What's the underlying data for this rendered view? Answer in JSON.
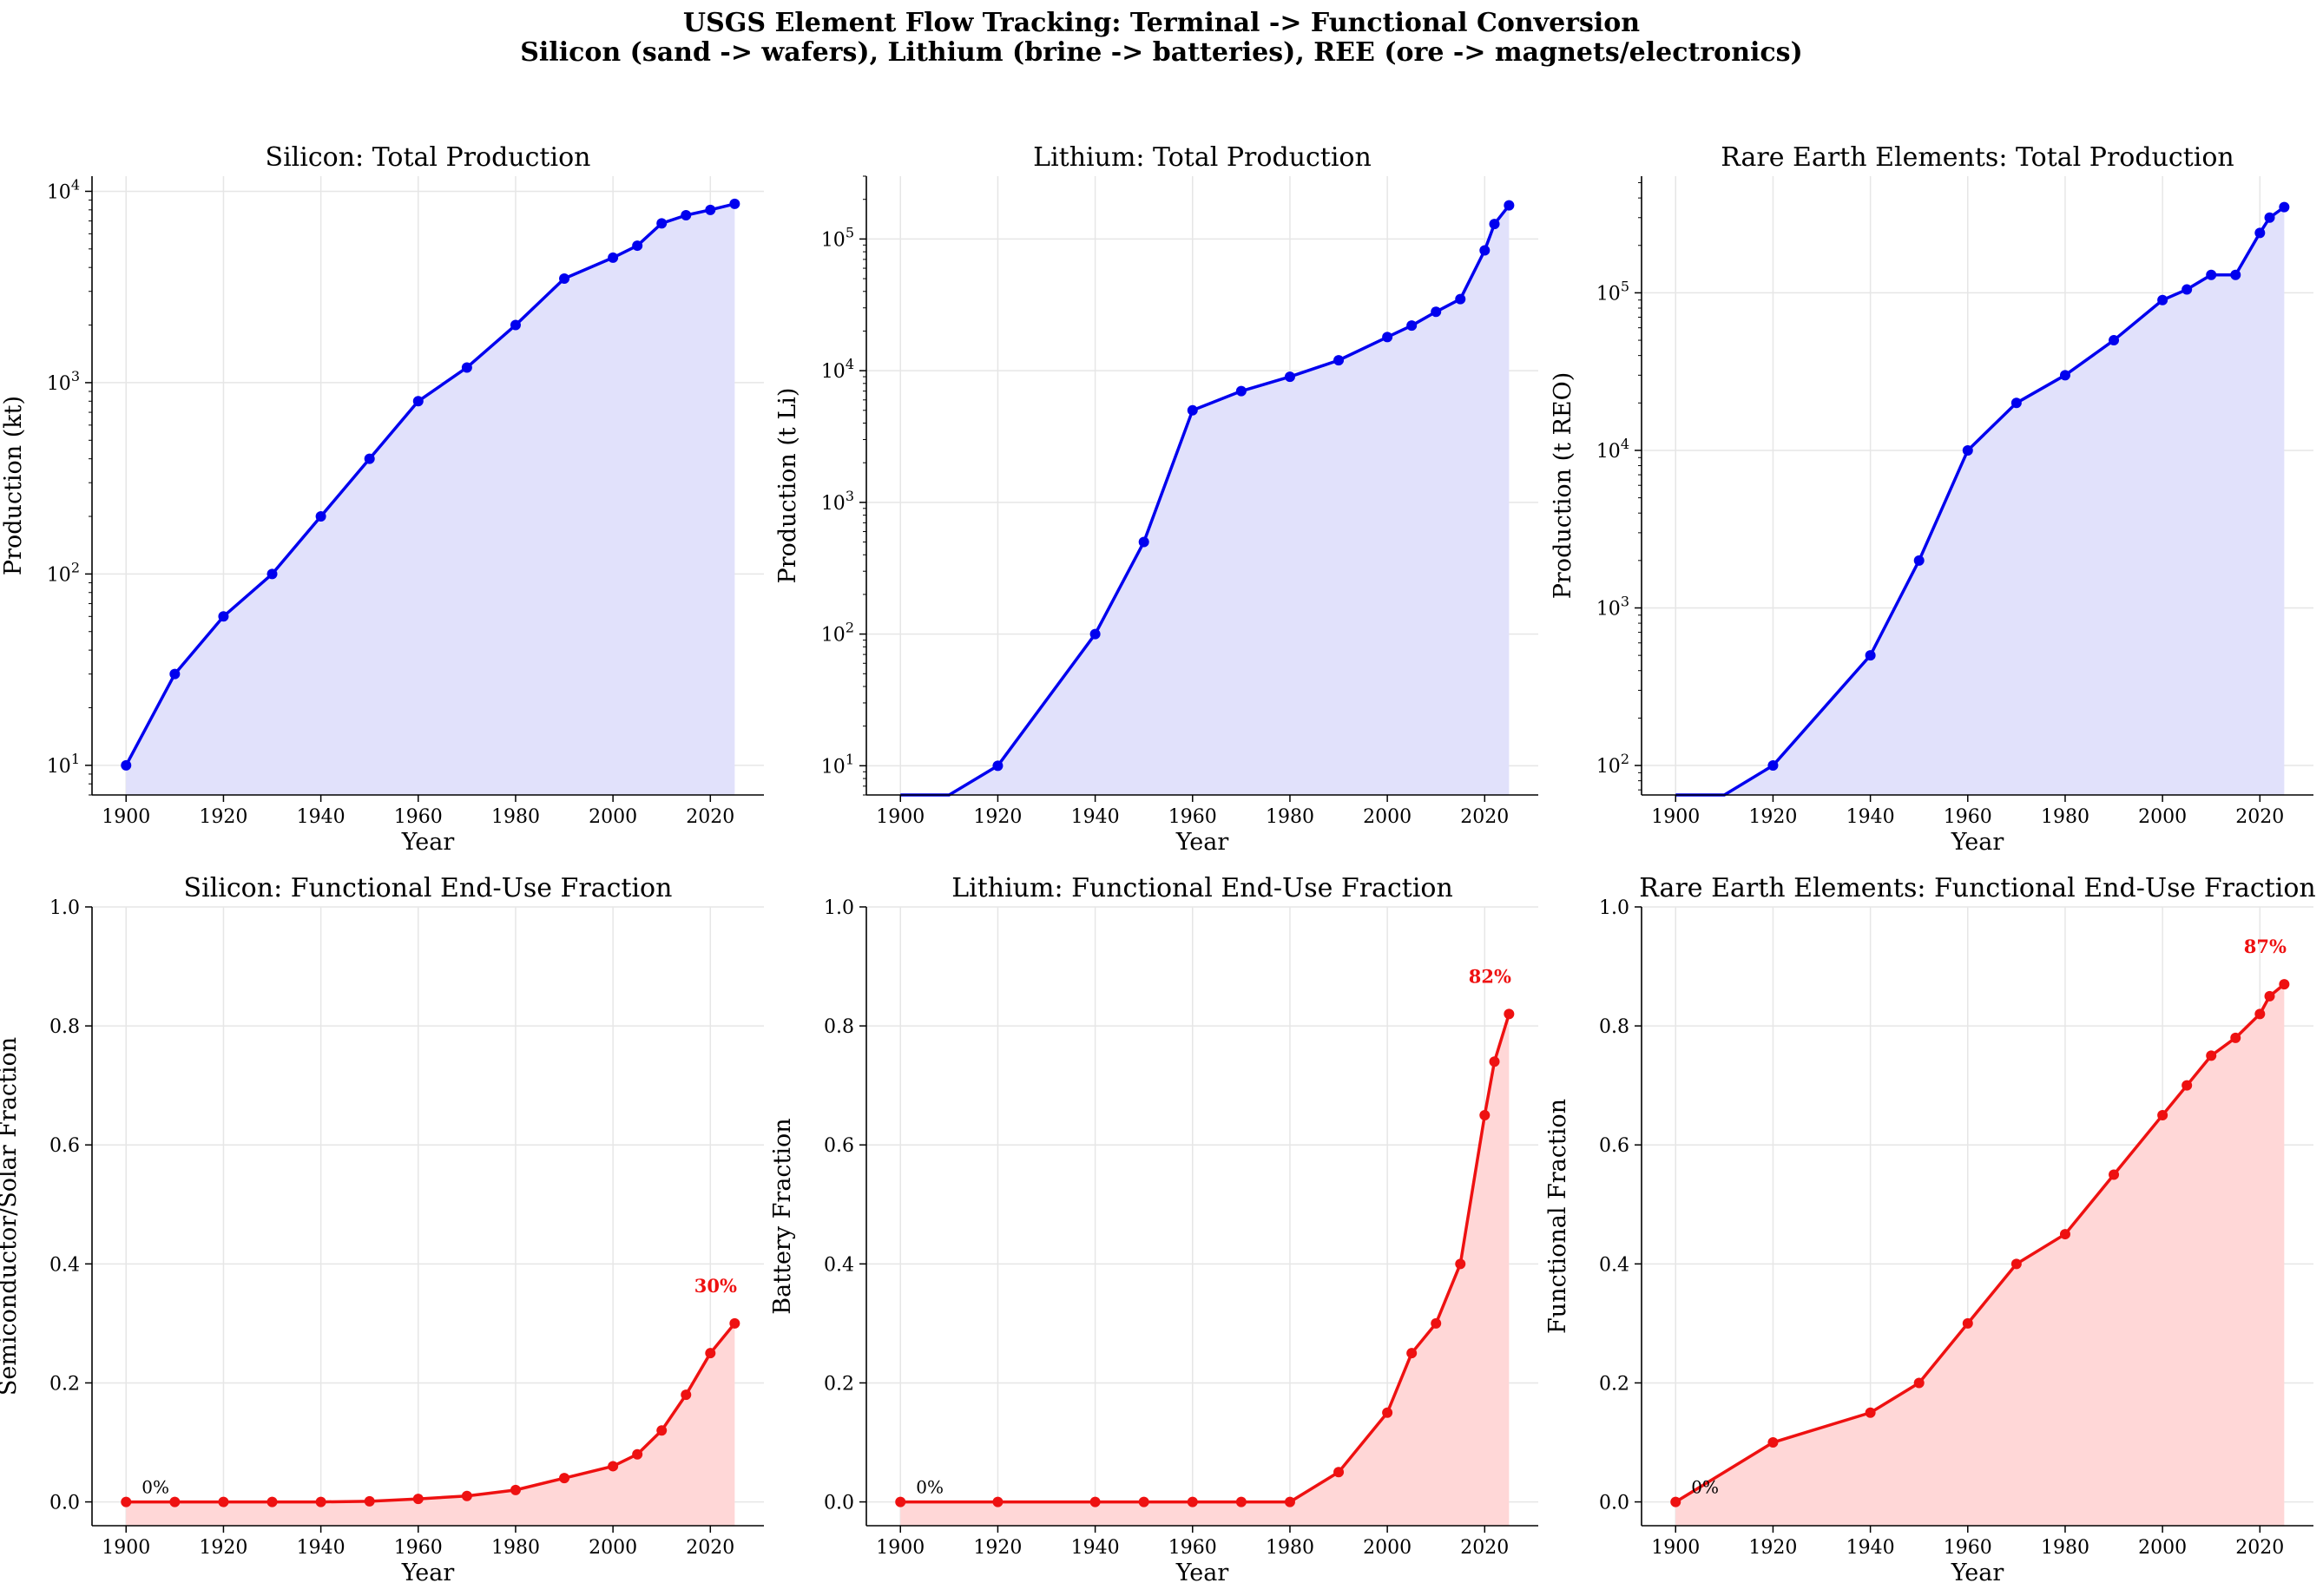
{
  "figure": {
    "title_line1": "USGS Element Flow Tracking: Terminal -> Functional Conversion",
    "title_line2": "Silicon (sand -> wafers), Lithium (brine -> batteries), REE (ore -> magnets/electronics)"
  },
  "colors": {
    "production_line": "#0000ee",
    "production_fill": "#e1e1fb",
    "fraction_line": "#ee1111",
    "fraction_fill": "#ffd7d7",
    "grid": "#e6e6e6"
  },
  "chart_data": [
    {
      "type": "area",
      "title": "Silicon: Total Production",
      "xlabel": "Year",
      "ylabel": "Production (kt)",
      "yscale": "log",
      "ylim": [
        7,
        12000
      ],
      "yticks": [
        10,
        100,
        1000,
        10000
      ],
      "ytick_labels": [
        "10^1",
        "10^2",
        "10^3",
        "10^4"
      ],
      "xlim": [
        1893,
        2031
      ],
      "xticks": [
        1900,
        1920,
        1940,
        1960,
        1980,
        2000,
        2020
      ],
      "grid": true,
      "series": [
        {
          "x": [
            1900,
            1910,
            1920,
            1930,
            1940,
            1950,
            1960,
            1970,
            1980,
            1990,
            2000,
            2005,
            2010,
            2015,
            2020,
            2025
          ],
          "y": [
            10,
            30,
            60,
            100,
            200,
            400,
            800,
            1200,
            2000,
            3500,
            4500,
            5200,
            6800,
            7500,
            8000,
            8600
          ]
        }
      ]
    },
    {
      "type": "area",
      "title": "Lithium: Total Production",
      "xlabel": "Year",
      "ylabel": "Production (t Li)",
      "yscale": "log",
      "ylim": [
        6,
        300000
      ],
      "yticks": [
        10,
        100,
        1000,
        10000,
        100000
      ],
      "ytick_labels": [
        "10^1",
        "10^2",
        "10^3",
        "10^4",
        "10^5"
      ],
      "xlim": [
        1893,
        2031
      ],
      "xticks": [
        1900,
        1920,
        1940,
        1960,
        1980,
        2000,
        2020
      ],
      "grid": true,
      "series": [
        {
          "x": [
            1900,
            1910,
            1920,
            1930,
            1940,
            1950,
            1960,
            1970,
            1980,
            1990,
            2000,
            2005,
            2010,
            2015,
            2020,
            2022,
            2025
          ],
          "y": [
            0,
            0,
            10,
            null,
            100,
            500,
            5000,
            7000,
            9000,
            12000,
            18000,
            22000,
            28000,
            35000,
            82000,
            130000,
            180000
          ]
        }
      ]
    },
    {
      "type": "area",
      "title": "Rare Earth Elements: Total Production",
      "xlabel": "Year",
      "ylabel": "Production (t REO)",
      "yscale": "log",
      "ylim": [
        65,
        550000
      ],
      "yticks": [
        100,
        1000,
        10000,
        100000
      ],
      "ytick_labels": [
        "10^2",
        "10^3",
        "10^4",
        "10^5"
      ],
      "xlim": [
        1893,
        2031
      ],
      "xticks": [
        1900,
        1920,
        1940,
        1960,
        1980,
        2000,
        2020
      ],
      "grid": true,
      "series": [
        {
          "x": [
            1900,
            1910,
            1920,
            1930,
            1940,
            1950,
            1960,
            1970,
            1980,
            1990,
            2000,
            2005,
            2010,
            2015,
            2020,
            2022,
            2025
          ],
          "y": [
            0,
            0,
            100,
            null,
            500,
            2000,
            10000,
            20000,
            30000,
            50000,
            90000,
            105000,
            130000,
            130000,
            240000,
            300000,
            350000
          ]
        }
      ]
    },
    {
      "type": "area",
      "title": "Silicon: Functional End-Use Fraction",
      "xlabel": "Year",
      "ylabel": "Semiconductor/Solar Fraction",
      "yscale": "linear",
      "ylim": [
        -0.04,
        1.0
      ],
      "yticks": [
        0,
        0.2,
        0.4,
        0.6,
        0.8,
        1.0
      ],
      "ytick_labels": [
        "0.0",
        "0.2",
        "0.4",
        "0.6",
        "0.8",
        "1.0"
      ],
      "xlim": [
        1893,
        2031
      ],
      "xticks": [
        1900,
        1920,
        1940,
        1960,
        1980,
        2000,
        2020
      ],
      "grid": true,
      "annotations": [
        {
          "text": "0%",
          "x": 1900,
          "y": 0,
          "bold": false
        },
        {
          "text": "30%",
          "x": 2025,
          "y": 0.3,
          "bold": true
        }
      ],
      "series": [
        {
          "x": [
            1900,
            1910,
            1920,
            1930,
            1940,
            1950,
            1960,
            1970,
            1980,
            1990,
            2000,
            2005,
            2010,
            2015,
            2020,
            2025
          ],
          "y": [
            0,
            0,
            0,
            0,
            0,
            0.001,
            0.005,
            0.01,
            0.02,
            0.04,
            0.06,
            0.08,
            0.12,
            0.18,
            0.25,
            0.3
          ]
        }
      ]
    },
    {
      "type": "area",
      "title": "Lithium: Functional End-Use Fraction",
      "xlabel": "Year",
      "ylabel": "Battery Fraction",
      "yscale": "linear",
      "ylim": [
        -0.04,
        1.0
      ],
      "yticks": [
        0,
        0.2,
        0.4,
        0.6,
        0.8,
        1.0
      ],
      "ytick_labels": [
        "0.0",
        "0.2",
        "0.4",
        "0.6",
        "0.8",
        "1.0"
      ],
      "xlim": [
        1893,
        2031
      ],
      "xticks": [
        1900,
        1920,
        1940,
        1960,
        1980,
        2000,
        2020
      ],
      "grid": true,
      "annotations": [
        {
          "text": "0%",
          "x": 1900,
          "y": 0,
          "bold": false
        },
        {
          "text": "82%",
          "x": 2025,
          "y": 0.82,
          "bold": true
        }
      ],
      "series": [
        {
          "x": [
            1900,
            1920,
            1940,
            1950,
            1960,
            1970,
            1980,
            1990,
            2000,
            2005,
            2010,
            2015,
            2020,
            2022,
            2025
          ],
          "y": [
            0,
            0,
            0,
            0,
            0,
            0,
            0,
            0.05,
            0.15,
            0.25,
            0.3,
            0.4,
            0.65,
            0.74,
            0.82
          ]
        }
      ]
    },
    {
      "type": "area",
      "title": "Rare Earth Elements: Functional End-Use Fraction",
      "xlabel": "Year",
      "ylabel": "Functional Fraction",
      "yscale": "linear",
      "ylim": [
        -0.04,
        1.0
      ],
      "yticks": [
        0,
        0.2,
        0.4,
        0.6,
        0.8,
        1.0
      ],
      "ytick_labels": [
        "0.0",
        "0.2",
        "0.4",
        "0.6",
        "0.8",
        "1.0"
      ],
      "xlim": [
        1893,
        2031
      ],
      "xticks": [
        1900,
        1920,
        1940,
        1960,
        1980,
        2000,
        2020
      ],
      "grid": true,
      "annotations": [
        {
          "text": "0%",
          "x": 1900,
          "y": 0,
          "bold": false
        },
        {
          "text": "87%",
          "x": 2025,
          "y": 0.87,
          "bold": true
        }
      ],
      "series": [
        {
          "x": [
            1900,
            1920,
            1940,
            1950,
            1960,
            1970,
            1980,
            1990,
            2000,
            2005,
            2010,
            2015,
            2020,
            2022,
            2025
          ],
          "y": [
            0,
            0.1,
            0.15,
            0.2,
            0.3,
            0.4,
            0.45,
            0.55,
            0.65,
            0.7,
            0.75,
            0.78,
            0.82,
            0.85,
            0.87
          ]
        }
      ]
    }
  ]
}
